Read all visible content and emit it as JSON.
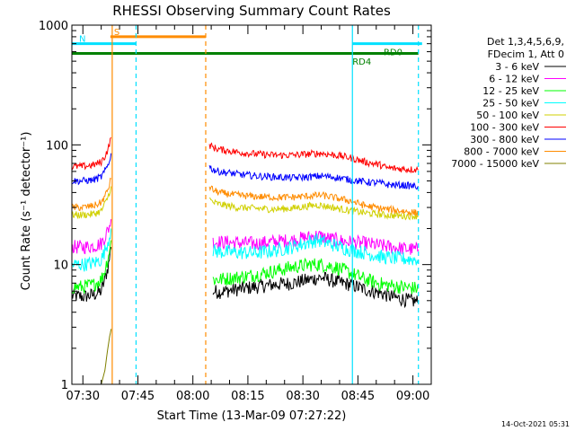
{
  "chart_data": {
    "type": "line",
    "title": "RHESSI Observing Summary Count Rates",
    "xlabel": "Start Time (13-Mar-09 07:27:22)",
    "ylabel": "Count Rate (s⁻¹ detector⁻¹)",
    "yscale": "log",
    "ylim": [
      1,
      1000
    ],
    "xlim": [
      0,
      98
    ],
    "x_ticks": [
      {
        "minute": 3,
        "label": "07:30"
      },
      {
        "minute": 18,
        "label": "07:45"
      },
      {
        "minute": 33,
        "label": "08:00"
      },
      {
        "minute": 48,
        "label": "08:15"
      },
      {
        "minute": 63,
        "label": "08:30"
      },
      {
        "minute": 78,
        "label": "08:45"
      },
      {
        "minute": 93,
        "label": "09:00"
      }
    ],
    "y_ticks": [
      {
        "value": 1,
        "label": "1"
      },
      {
        "value": 10,
        "label": "10"
      },
      {
        "value": 100,
        "label": "100"
      },
      {
        "value": 1000,
        "label": "1000"
      }
    ],
    "legend_header": [
      "Det 1,3,4,5,6,9,",
      "FDecim 1, Att 0"
    ],
    "footer_date": "14-Oct-2021 05:31",
    "vertical_lines": [
      {
        "minute": 11.0,
        "color": "#ff8c00",
        "style": "solid"
      },
      {
        "minute": 17.5,
        "color": "#00e0ff",
        "style": "dashed"
      },
      {
        "minute": 36.5,
        "color": "#ff8c00",
        "style": "dashed"
      },
      {
        "minute": 76.5,
        "color": "#00e0ff",
        "style": "solid"
      },
      {
        "minute": 94.5,
        "color": "#00e0ff",
        "style": "dashed"
      }
    ],
    "flag_bars": [
      {
        "label": "S",
        "color": "#ff8c00",
        "x0": 10.5,
        "x1": 36.5,
        "y": 800,
        "width": 3
      },
      {
        "label": "N",
        "color": "#00e0ff",
        "x0": 0,
        "x1": 17.5,
        "y": 700,
        "width": 3
      },
      {
        "label": "",
        "color": "#00e0ff",
        "x0": 76.5,
        "x1": 95.5,
        "y": 700,
        "width": 3
      },
      {
        "label": "",
        "color": "#008000",
        "x0": 0,
        "x1": 94.5,
        "y": 580,
        "width": 3
      }
    ],
    "flag_texts": [
      {
        "text": "RD4",
        "color": "#008000",
        "minute": 76.5,
        "y": 500
      },
      {
        "text": "RD0",
        "color": "#008000",
        "minute": 85.0,
        "y": 600
      }
    ],
    "series": [
      {
        "name": "3 - 6 keV",
        "color": "#000000",
        "points": [
          [
            0,
            5.5
          ],
          [
            3,
            5.4
          ],
          [
            6,
            5.6
          ],
          [
            8,
            6.0
          ],
          [
            9,
            7.5
          ],
          [
            10,
            10.0
          ],
          [
            10.7,
            14.0
          ],
          null,
          [
            38.5,
            6.0
          ],
          [
            40,
            5.9
          ],
          [
            45,
            6.2
          ],
          [
            50,
            6.5
          ],
          [
            55,
            6.8
          ],
          [
            60,
            7.0
          ],
          [
            65,
            7.5
          ],
          [
            68,
            7.8
          ],
          [
            72,
            7.2
          ],
          [
            76,
            6.8
          ],
          [
            80,
            6.2
          ],
          [
            84,
            5.8
          ],
          [
            88,
            5.3
          ],
          [
            92,
            5.0
          ],
          [
            94.5,
            4.9
          ]
        ]
      },
      {
        "name": "6 - 12 keV",
        "color": "#ff00ff",
        "points": [
          [
            0,
            14.0
          ],
          [
            3,
            14.0
          ],
          [
            6,
            14.3
          ],
          [
            8,
            15.0
          ],
          [
            9,
            17.0
          ],
          [
            10,
            20.0
          ],
          [
            10.7,
            24.0
          ],
          null,
          [
            38.5,
            15.5
          ],
          [
            40,
            15.4
          ],
          [
            45,
            15.2
          ],
          [
            50,
            15.0
          ],
          [
            55,
            15.5
          ],
          [
            60,
            16.0
          ],
          [
            65,
            17.0
          ],
          [
            67,
            17.5
          ],
          [
            70,
            16.5
          ],
          [
            75,
            15.5
          ],
          [
            80,
            15.0
          ],
          [
            85,
            14.3
          ],
          [
            90,
            13.6
          ],
          [
            94.5,
            13.3
          ]
        ]
      },
      {
        "name": "12 - 25 keV",
        "color": "#00ff00",
        "points": [
          [
            0,
            6.5
          ],
          [
            3,
            6.5
          ],
          [
            6,
            6.8
          ],
          [
            8,
            7.5
          ],
          [
            9,
            9.0
          ],
          [
            10,
            12.0
          ],
          [
            10.7,
            16.0
          ],
          null,
          [
            38.5,
            7.5
          ],
          [
            40,
            7.5
          ],
          [
            45,
            7.8
          ],
          [
            50,
            8.2
          ],
          [
            55,
            8.8
          ],
          [
            60,
            9.5
          ],
          [
            65,
            10.0
          ],
          [
            68,
            10.0
          ],
          [
            72,
            9.5
          ],
          [
            76,
            8.5
          ],
          [
            80,
            7.5
          ],
          [
            85,
            6.8
          ],
          [
            90,
            6.5
          ],
          [
            94.5,
            6.3
          ]
        ]
      },
      {
        "name": "25 - 50 keV",
        "color": "#00ffff",
        "points": [
          [
            0,
            10.0
          ],
          [
            3,
            10.0
          ],
          [
            6,
            10.3
          ],
          [
            8,
            11.0
          ],
          [
            9,
            13.0
          ],
          [
            10,
            16.0
          ],
          [
            10.7,
            20.0
          ],
          null,
          [
            38.5,
            13.0
          ],
          [
            40,
            12.8
          ],
          [
            45,
            12.6
          ],
          [
            50,
            12.5
          ],
          [
            55,
            13.0
          ],
          [
            60,
            14.0
          ],
          [
            65,
            15.5
          ],
          [
            67,
            16.0
          ],
          [
            70,
            15.0
          ],
          [
            75,
            13.5
          ],
          [
            80,
            12.5
          ],
          [
            85,
            11.5
          ],
          [
            90,
            11.2
          ],
          [
            94.5,
            11.0
          ]
        ]
      },
      {
        "name": "50 - 100 keV",
        "color": "#d0d000",
        "points": [
          [
            0,
            26.0
          ],
          [
            3,
            26.0
          ],
          [
            6,
            26.5
          ],
          [
            8,
            28.0
          ],
          [
            9,
            32.0
          ],
          [
            10,
            38.0
          ],
          [
            10.7,
            45.0
          ],
          null,
          [
            37.5,
            35.0
          ],
          [
            38.5,
            33.0
          ],
          [
            40,
            32.0
          ],
          [
            45,
            30.0
          ],
          [
            50,
            29.5
          ],
          [
            55,
            29.0
          ],
          [
            60,
            29.5
          ],
          [
            65,
            31.0
          ],
          [
            67,
            31.5
          ],
          [
            70,
            30.5
          ],
          [
            75,
            28.5
          ],
          [
            80,
            27.0
          ],
          [
            85,
            26.0
          ],
          [
            90,
            25.5
          ],
          [
            94.5,
            25.5
          ]
        ]
      },
      {
        "name": "100 - 300 keV",
        "color": "#ff0000",
        "points": [
          [
            0,
            66.0
          ],
          [
            3,
            66.0
          ],
          [
            6,
            68.0
          ],
          [
            8,
            72.0
          ],
          [
            9,
            80.0
          ],
          [
            10,
            95.0
          ],
          [
            10.7,
            115.0
          ],
          null,
          [
            37.5,
            100.0
          ],
          [
            38.5,
            95.0
          ],
          [
            40,
            92.0
          ],
          [
            45,
            87.0
          ],
          [
            50,
            84.0
          ],
          [
            55,
            82.0
          ],
          [
            60,
            82.0
          ],
          [
            65,
            84.0
          ],
          [
            68,
            85.0
          ],
          [
            72,
            82.0
          ],
          [
            76,
            78.0
          ],
          [
            80,
            72.0
          ],
          [
            84,
            68.0
          ],
          [
            86,
            64.0
          ],
          [
            90,
            63.0
          ],
          [
            94.5,
            62.0
          ]
        ]
      },
      {
        "name": "300 - 800 keV",
        "color": "#0000ff",
        "points": [
          [
            0,
            50.0
          ],
          [
            3,
            50.0
          ],
          [
            6,
            51.0
          ],
          [
            8,
            54.0
          ],
          [
            9,
            60.0
          ],
          [
            10,
            70.0
          ],
          [
            10.7,
            85.0
          ],
          null,
          [
            37.5,
            66.0
          ],
          [
            38.5,
            62.0
          ],
          [
            40,
            60.0
          ],
          [
            45,
            57.0
          ],
          [
            50,
            55.0
          ],
          [
            55,
            54.0
          ],
          [
            60,
            53.0
          ],
          [
            65,
            54.0
          ],
          [
            68,
            55.0
          ],
          [
            72,
            53.5
          ],
          [
            76,
            51.0
          ],
          [
            80,
            49.0
          ],
          [
            84,
            48.0
          ],
          [
            86,
            46.5
          ],
          [
            90,
            46.0
          ],
          [
            94.5,
            45.0
          ]
        ]
      },
      {
        "name": "800 - 7000 keV",
        "color": "#ff8c00",
        "points": [
          [
            0,
            30.0
          ],
          [
            3,
            30.0
          ],
          [
            6,
            31.0
          ],
          [
            8,
            33.0
          ],
          [
            9,
            37.0
          ],
          [
            10,
            44.0
          ],
          [
            10.7,
            52.0
          ],
          null,
          [
            37.5,
            45.0
          ],
          [
            38.5,
            42.0
          ],
          [
            40,
            40.0
          ],
          [
            45,
            38.0
          ],
          [
            50,
            37.0
          ],
          [
            55,
            36.5
          ],
          [
            60,
            36.5
          ],
          [
            65,
            37.5
          ],
          [
            68,
            38.0
          ],
          [
            72,
            36.0
          ],
          [
            76,
            34.0
          ],
          [
            80,
            31.0
          ],
          [
            84,
            29.5
          ],
          [
            88,
            28.5
          ],
          [
            92,
            27.5
          ],
          [
            94.5,
            27.0
          ]
        ]
      },
      {
        "name": "7000 - 15000 keV",
        "color": "#808000",
        "points": [
          [
            8,
            1.0
          ],
          [
            9,
            1.3
          ],
          [
            9.7,
            1.9
          ],
          [
            10.3,
            2.5
          ],
          [
            10.7,
            2.9
          ]
        ]
      }
    ]
  }
}
